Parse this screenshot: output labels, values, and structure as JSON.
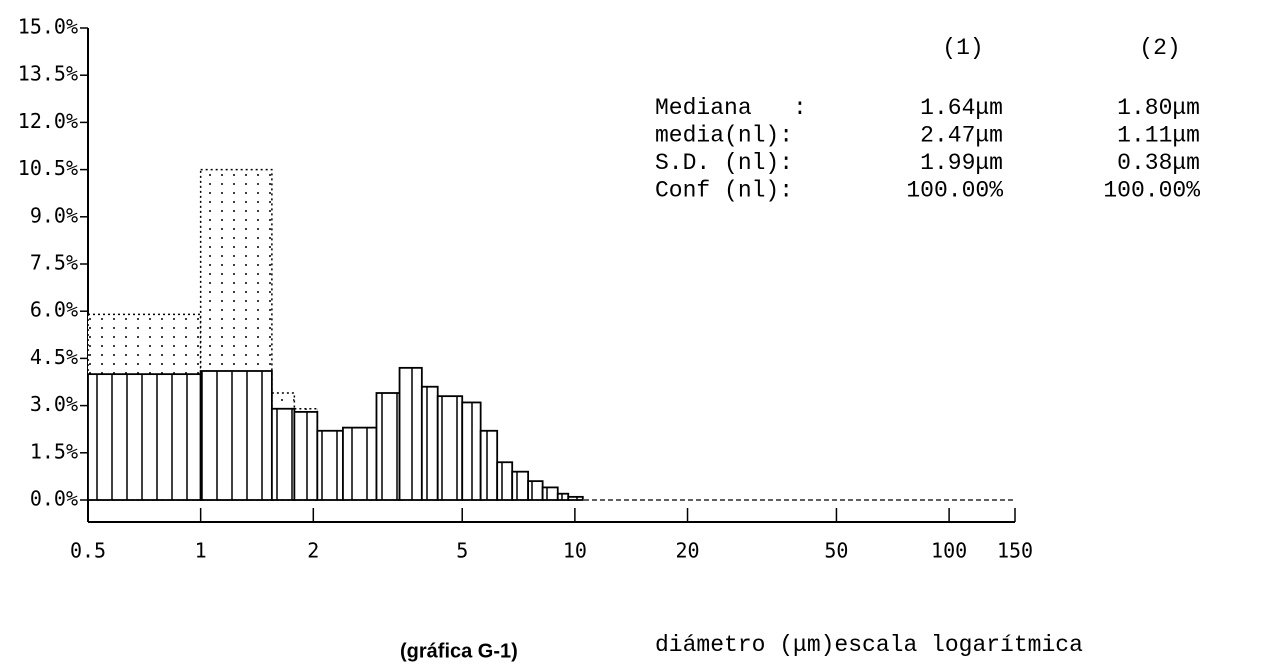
{
  "chart_data": {
    "type": "histogram",
    "xlabel": "diámetro (μm)escala logarítmica",
    "caption": "(gráfica G-1)",
    "xscale": "log",
    "xlim": [
      0.5,
      150
    ],
    "xticks": [
      0.5,
      1,
      2,
      5,
      10,
      20,
      50,
      100,
      150
    ],
    "ylim": [
      0,
      15
    ],
    "yticks": [
      {
        "value": 0,
        "label": "0.0%"
      },
      {
        "value": 1.5,
        "label": "1.5%"
      },
      {
        "value": 3,
        "label": "3.0%"
      },
      {
        "value": 4.5,
        "label": "4.5%"
      },
      {
        "value": 6,
        "label": "6.0%"
      },
      {
        "value": 7.5,
        "label": "7.5%"
      },
      {
        "value": 9,
        "label": "9.0%"
      },
      {
        "value": 10.5,
        "label": "10.5%"
      },
      {
        "value": 12,
        "label": "12.0%"
      },
      {
        "value": 13.5,
        "label": "13.5%"
      },
      {
        "value": 15,
        "label": "15.0%"
      }
    ],
    "series": [
      {
        "name": "(2)",
        "color": "#000000",
        "style": "dotted",
        "bins": [
          0.5,
          1,
          1.55,
          1.78,
          2.05
        ],
        "values": [
          5.9,
          10.5,
          3.4,
          2.9
        ]
      },
      {
        "name": "(1)",
        "color": "#000000",
        "style": "hatched",
        "bins": [
          0.5,
          1,
          1.55,
          1.78,
          2.05,
          2.4,
          2.95,
          3.4,
          3.9,
          4.3,
          5,
          5.6,
          6.2,
          6.8,
          7.5,
          8.2,
          9,
          9.6,
          10.5,
          150
        ],
        "values": [
          4.0,
          4.1,
          2.9,
          2.8,
          2.2,
          2.3,
          3.4,
          4.2,
          3.6,
          3.3,
          3.1,
          2.2,
          1.2,
          0.9,
          0.6,
          0.4,
          0.2,
          0.1,
          0.0
        ]
      }
    ],
    "stats": {
      "rows": [
        {
          "label": "Mediana   :",
          "values": [
            "1.64μm",
            "1.80μm"
          ]
        },
        {
          "label": "media(nl):",
          "values": [
            "2.47μm",
            "1.11μm"
          ]
        },
        {
          "label": "S.D. (nl):",
          "values": [
            "1.99μm",
            "0.38μm"
          ]
        },
        {
          "label": "Conf (nl):",
          "values": [
            "100.00%",
            "100.00%"
          ]
        }
      ]
    }
  }
}
